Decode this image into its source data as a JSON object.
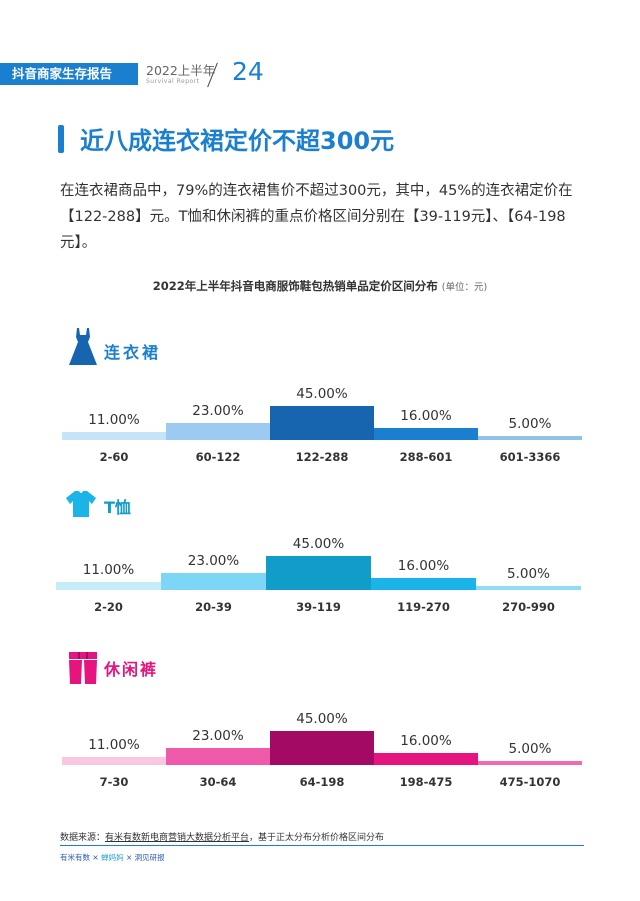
{
  "header": {
    "report_name": "抖音商家生存报告",
    "period": "2022上半年",
    "period_en": "Survival Report",
    "page_number": "24"
  },
  "title": "近八成连衣裙定价不超300元",
  "paragraph": "在连衣裙商品中，79%的连衣裙售价不超过300元，其中，45%的连衣裙定价在【122-288】元。T恤和休闲裤的重点价格区间分别在【39-119元】、【64-198元】。",
  "chart_title": "2022年上半年抖音电商服饰鞋包热销单品定价区间分布",
  "chart_unit": "(单位：元)",
  "chart_data": [
    {
      "type": "bar",
      "name": "连衣裙",
      "categories": [
        "2-60",
        "60-122",
        "122-288",
        "288-601",
        "601-3366"
      ],
      "values": [
        11,
        23,
        45,
        16,
        5
      ],
      "labels": [
        "11.00%",
        "23.00%",
        "45.00%",
        "16.00%",
        "5.00%"
      ],
      "colors": [
        "#c6e4f8",
        "#9ccaf0",
        "#1665ae",
        "#1b7fd0",
        "#8fc3ea"
      ],
      "label_color": "#1b7fd0"
    },
    {
      "type": "bar",
      "name": "T恤",
      "categories": [
        "2-20",
        "20-39",
        "39-119",
        "119-270",
        "270-990"
      ],
      "values": [
        11,
        23,
        45,
        16,
        5
      ],
      "labels": [
        "11.00%",
        "23.00%",
        "45.00%",
        "16.00%",
        "5.00%"
      ],
      "colors": [
        "#c6ecfa",
        "#7ed6f6",
        "#129cca",
        "#1ab4e8",
        "#8edcf6"
      ],
      "label_color": "#129cca"
    },
    {
      "type": "bar",
      "name": "休闲裤",
      "categories": [
        "7-30",
        "30-64",
        "64-198",
        "198-475",
        "475-1070"
      ],
      "values": [
        11,
        23,
        45,
        16,
        5
      ],
      "labels": [
        "11.00%",
        "23.00%",
        "45.00%",
        "16.00%",
        "5.00%"
      ],
      "colors": [
        "#f9c8e0",
        "#ef5aab",
        "#a30a63",
        "#e5147e",
        "#f06aae"
      ],
      "label_color": "#e5147e"
    }
  ],
  "source": {
    "prefix": "数据来源：",
    "link": "有米有数新电商营销大数据分析平台",
    "suffix": "，基于正太分布分析价格区间分布"
  },
  "footer_logos": [
    "有米有数",
    "×",
    "蝉妈妈",
    "×",
    "洞见研报"
  ]
}
